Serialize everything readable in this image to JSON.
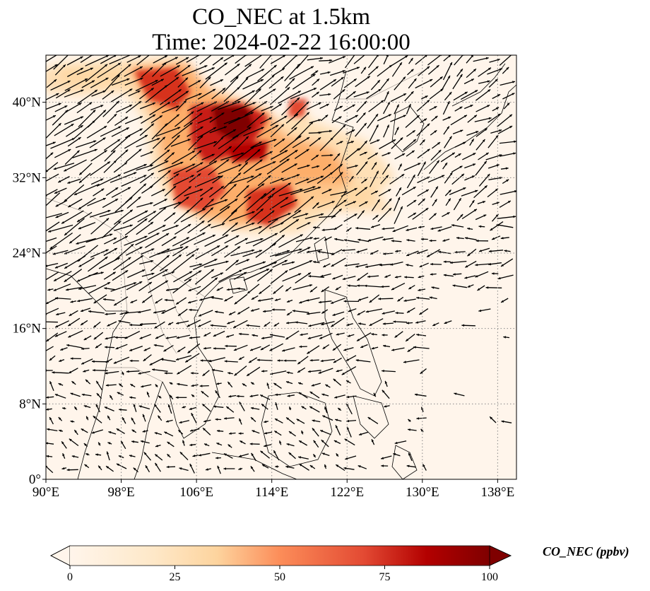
{
  "figure": {
    "title_line1": "CO_NEC at 1.5km",
    "title_line2": "Time: 2024-02-22 16:00:00"
  },
  "map": {
    "lon_range": [
      90,
      140
    ],
    "lat_range": [
      0,
      45
    ],
    "x_ticks": [
      "90°E",
      "98°E",
      "106°E",
      "114°E",
      "122°E",
      "130°E",
      "138°E"
    ],
    "y_ticks": [
      "0°",
      "8°N",
      "16°N",
      "24°N",
      "32°N",
      "40°N"
    ],
    "gridlines": "dotted",
    "background_color": "#fff5eb",
    "overlay": "wind vectors (quiver) with coastlines and country borders"
  },
  "colorbar": {
    "label": "CO_NEC (ppbv)",
    "ticks": [
      "0",
      "25",
      "50",
      "75",
      "100"
    ],
    "range": [
      0,
      100
    ],
    "extend": "both",
    "colormap": "OrRd",
    "colors": [
      "#fff5eb",
      "#fdd49e",
      "#fdae6b",
      "#f16913",
      "#d7301f",
      "#a50f15",
      "#67000d"
    ]
  }
}
